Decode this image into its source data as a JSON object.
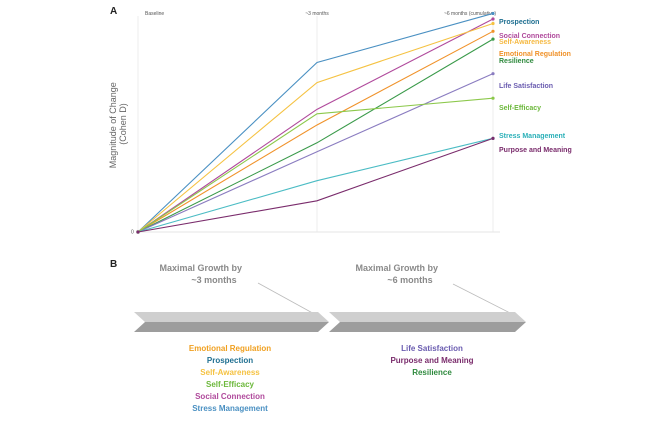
{
  "panel_a_label": "A",
  "panel_b_label": "B",
  "chart_data": {
    "type": "line",
    "x": [
      "Baseline",
      "~3 months",
      "~6 months (cumulative)"
    ],
    "ylabel": "Magnitude of Change\n(Cohen D)",
    "y_tick_label": "0",
    "ylim": [
      0,
      1.0
    ],
    "grid": "vertical lines at each time point",
    "legend": "right, labels at line ends",
    "series": [
      {
        "name": "Prospection",
        "color": "#4a90c2",
        "values": [
          0,
          0.76,
          0.98
        ]
      },
      {
        "name": "Social Connection",
        "color": "#b04a9c",
        "values": [
          0,
          0.55,
          0.955
        ]
      },
      {
        "name": "Self-Awareness",
        "color": "#f5c242",
        "values": [
          0,
          0.67,
          0.935
        ]
      },
      {
        "name": "Emotional Regulation",
        "color": "#f0922a",
        "values": [
          0,
          0.48,
          0.9
        ]
      },
      {
        "name": "Resilience",
        "color": "#3a9a4a",
        "values": [
          0,
          0.4,
          0.865
        ]
      },
      {
        "name": "Life Satisfaction",
        "color": "#8a7cc0",
        "values": [
          0,
          0.36,
          0.71
        ]
      },
      {
        "name": "Self-Efficacy",
        "color": "#8cc84b",
        "values": [
          0,
          0.53,
          0.6
        ]
      },
      {
        "name": "Stress Management",
        "color": "#4bbcc4",
        "values": [
          0,
          0.23,
          0.42
        ]
      },
      {
        "name": "Purpose and Meaning",
        "color": "#7a2c6c",
        "values": [
          0,
          0.14,
          0.42
        ]
      }
    ],
    "label_colors": {
      "Prospection": "#1f6f91",
      "Social Connection": "#b04a9c",
      "Self-Awareness": "#f5b942",
      "Emotional Regulation": "#f0922a",
      "Resilience": "#2f8a3e",
      "Life Satisfaction": "#6a5cb0",
      "Self-Efficacy": "#6cb83b",
      "Stress Management": "#2bb0b8",
      "Purpose and Meaning": "#7a2c6c"
    }
  },
  "panel_b": {
    "phase1": {
      "title_line1": "Maximal Growth by",
      "title_line2": "~3 months",
      "items": [
        {
          "label": "Emotional Regulation",
          "color": "#f0a020"
        },
        {
          "label": "Prospection",
          "color": "#1f6f91"
        },
        {
          "label": "Self-Awareness",
          "color": "#f5c242"
        },
        {
          "label": "Self-Efficacy",
          "color": "#6cb83b"
        },
        {
          "label": "Social Connection",
          "color": "#b04a9c"
        },
        {
          "label": "Stress Management",
          "color": "#4a90c2"
        }
      ]
    },
    "phase2": {
      "title_line1": "Maximal Growth by",
      "title_line2": "~6 months",
      "items": [
        {
          "label": "Life Satisfaction",
          "color": "#6a5cb0"
        },
        {
          "label": "Purpose and Meaning",
          "color": "#7a2c6c"
        },
        {
          "label": "Resilience",
          "color": "#2f8a3e"
        }
      ]
    }
  }
}
